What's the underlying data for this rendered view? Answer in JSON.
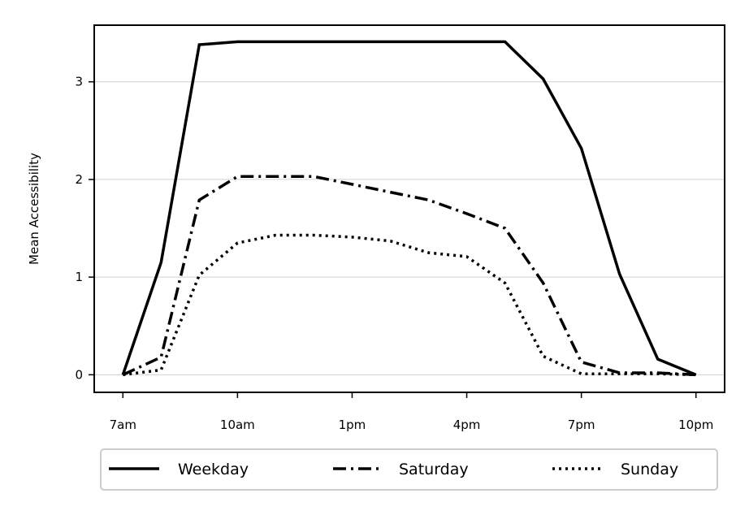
{
  "chart_data": {
    "type": "line",
    "title": "",
    "xlabel": "",
    "ylabel": "Mean Accessibility",
    "x_tick_labels": [
      "7am",
      "10am",
      "1pm",
      "4pm",
      "7pm",
      "10pm"
    ],
    "x_ticks": [
      7,
      10,
      13,
      16,
      19,
      22
    ],
    "xlim": [
      6.25,
      22.75
    ],
    "y_ticks": [
      0,
      1,
      2,
      3
    ],
    "y_tick_labels": [
      "0",
      "1",
      "2",
      "3"
    ],
    "ylim": [
      -0.18,
      3.58
    ],
    "grid": "horizontal",
    "legend_placement": "bottom",
    "x": [
      7,
      8,
      9,
      10,
      11,
      12,
      13,
      14,
      15,
      16,
      17,
      18,
      19,
      20,
      21,
      22
    ],
    "series": [
      {
        "name": "Weekday",
        "style": "solid",
        "color": "#000000",
        "values": [
          0.0,
          1.15,
          3.38,
          3.41,
          3.41,
          3.41,
          3.41,
          3.41,
          3.41,
          3.41,
          3.41,
          3.03,
          2.32,
          1.03,
          0.16,
          0.0
        ]
      },
      {
        "name": "Saturday",
        "style": "dashdot",
        "color": "#000000",
        "values": [
          0.0,
          0.18,
          1.79,
          2.03,
          2.03,
          2.03,
          1.95,
          1.87,
          1.79,
          1.65,
          1.5,
          0.94,
          0.13,
          0.02,
          0.02,
          0.0
        ]
      },
      {
        "name": "Sunday",
        "style": "dotted",
        "color": "#000000",
        "values": [
          0.0,
          0.05,
          1.02,
          1.35,
          1.43,
          1.43,
          1.41,
          1.37,
          1.25,
          1.21,
          0.94,
          0.19,
          0.01,
          0.01,
          0.01,
          0.0
        ]
      }
    ]
  }
}
